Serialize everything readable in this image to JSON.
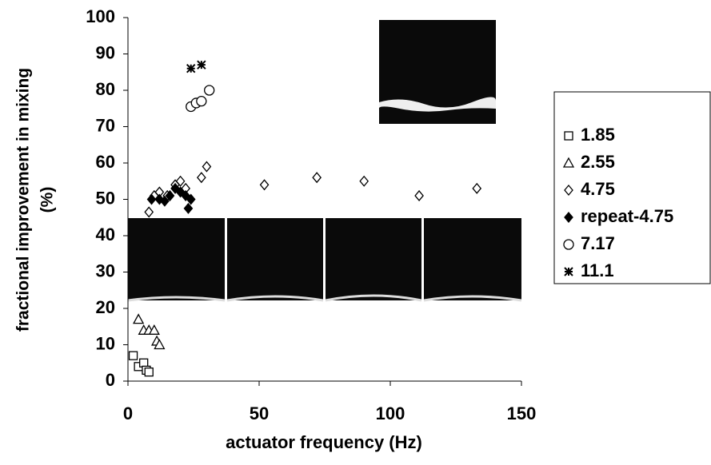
{
  "chart_data": {
    "type": "scatter",
    "x_label": "actuator frequency (Hz)",
    "y_label": [
      "fractional improvement in mixing",
      "(%)"
    ],
    "xlim": [
      0,
      150
    ],
    "xticks": [
      0,
      50,
      100,
      150
    ],
    "ylim": [
      0,
      100
    ],
    "yticks": [
      0,
      10,
      20,
      30,
      40,
      50,
      60,
      70,
      80,
      90,
      100
    ],
    "series": [
      {
        "name": "1.85",
        "marker": "square",
        "color": "#000000",
        "x": [
          2,
          4,
          6,
          7,
          8
        ],
        "values": [
          7,
          4,
          5,
          3,
          2.5
        ]
      },
      {
        "name": "2.55",
        "marker": "triangle",
        "color": "#000000",
        "x": [
          4,
          6,
          8,
          10,
          11,
          12
        ],
        "values": [
          17,
          14,
          14,
          14,
          11,
          10
        ]
      },
      {
        "name": "4.75",
        "marker": "diamond",
        "color": "#000000",
        "x": [
          8,
          10,
          12,
          15,
          18,
          20,
          22,
          28,
          30,
          52,
          72,
          90,
          111,
          133
        ],
        "values": [
          46.5,
          51,
          52,
          51,
          54,
          55,
          53,
          56,
          59,
          54,
          56,
          55,
          51,
          53
        ]
      },
      {
        "name": "repeat-4.75",
        "marker": "diamond-filled",
        "color": "#000000",
        "x": [
          9,
          12,
          14,
          16,
          18,
          20,
          22,
          24,
          23
        ],
        "values": [
          50,
          50,
          49.5,
          51,
          53,
          52,
          51,
          50,
          47.5
        ]
      },
      {
        "name": "7.17",
        "marker": "circle",
        "color": "#000000",
        "x": [
          24,
          26,
          28,
          31
        ],
        "values": [
          75.5,
          76.5,
          77,
          80
        ]
      },
      {
        "name": "11.1",
        "marker": "star",
        "color": "#000000",
        "x": [
          24,
          28
        ],
        "values": [
          86,
          87
        ]
      }
    ]
  }
}
